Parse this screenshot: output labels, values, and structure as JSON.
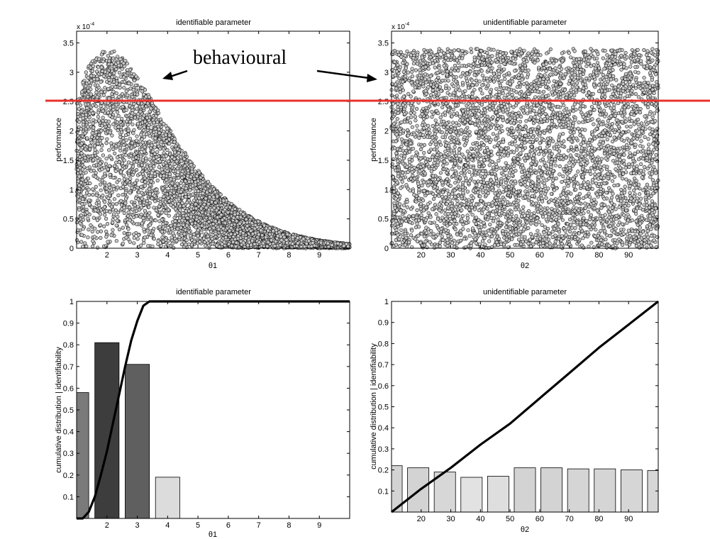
{
  "figure": {
    "annotation": "behavioural",
    "threshold_line_color": "#e8322d"
  },
  "chart_data": [
    {
      "id": "top-left",
      "type": "scatter",
      "title": "identifiable parameter",
      "xlabel": "θ1",
      "ylabel": "performance",
      "exponent_label": "x 10",
      "exponent_power": "-4",
      "xlim": [
        1,
        10
      ],
      "ylim": [
        0,
        3.7
      ],
      "xticks": [
        2,
        3,
        4,
        5,
        6,
        7,
        8,
        9
      ],
      "yticks": [
        0,
        0.5,
        1,
        1.5,
        2,
        2.5,
        3,
        3.5
      ],
      "ytick_labels": [
        "0",
        "0.5",
        "1",
        "1.5",
        "2",
        "2.5",
        "3",
        "3.5"
      ],
      "behavioural_threshold": 2.53,
      "envelope": {
        "peak_x": 2,
        "peak_y": 3.4
      },
      "marker": "open circle",
      "n_points": 5000
    },
    {
      "id": "top-right",
      "type": "scatter",
      "title": "unidentifiable parameter",
      "xlabel": "θ2",
      "ylabel": "performance",
      "exponent_label": "x 10",
      "exponent_power": "-4",
      "xlim": [
        10,
        100
      ],
      "ylim": [
        0,
        3.7
      ],
      "xticks": [
        20,
        30,
        40,
        50,
        60,
        70,
        80,
        90
      ],
      "yticks": [
        0,
        0.5,
        1,
        1.5,
        2,
        2.5,
        3,
        3.5
      ],
      "ytick_labels": [
        "0",
        "0.5",
        "1",
        "1.5",
        "2",
        "2.5",
        "3",
        "3.5"
      ],
      "behavioural_threshold": 2.53,
      "y_range_uniform": [
        0,
        3.4
      ],
      "marker": "open circle",
      "n_points": 5000
    },
    {
      "id": "bottom-left",
      "type": "bar",
      "title": "identifiable parameter",
      "xlabel": "θ1",
      "ylabel": "cumulative distribution | identifiability",
      "xlim": [
        1,
        10
      ],
      "ylim": [
        0,
        1
      ],
      "xticks": [
        2,
        3,
        4,
        5,
        6,
        7,
        8,
        9
      ],
      "yticks": [
        0.1,
        0.2,
        0.3,
        0.4,
        0.5,
        0.6,
        0.7,
        0.8,
        0.9,
        1
      ],
      "ytick_labels": [
        "0.1",
        "0.2",
        "0.3",
        "0.4",
        "0.5",
        "0.6",
        "0.7",
        "0.8",
        "0.9",
        "1"
      ],
      "bars": [
        {
          "x": 1,
          "value": 0.58,
          "color": "#7a7a7a"
        },
        {
          "x": 2,
          "value": 0.81,
          "color": "#3d3d3d"
        },
        {
          "x": 3,
          "value": 0.71,
          "color": "#5f5f5f"
        },
        {
          "x": 4,
          "value": 0.19,
          "color": "#dcdcdc"
        }
      ],
      "cdf_line": {
        "x": [
          1.0,
          1.2,
          1.4,
          1.6,
          1.8,
          2.0,
          2.2,
          2.4,
          2.6,
          2.8,
          3.0,
          3.2,
          3.4,
          3.6,
          4.0,
          10.0
        ],
        "y": [
          0.0,
          0.0,
          0.03,
          0.1,
          0.2,
          0.31,
          0.44,
          0.57,
          0.7,
          0.82,
          0.91,
          0.98,
          1.0,
          1.0,
          1.0,
          1.0
        ]
      }
    },
    {
      "id": "bottom-right",
      "type": "bar",
      "title": "unidentifiable parameter",
      "xlabel": "θ2",
      "ylabel": "cumulative distribution | identifiability",
      "xlim": [
        10,
        100
      ],
      "ylim": [
        0,
        1
      ],
      "xticks": [
        20,
        30,
        40,
        50,
        60,
        70,
        80,
        90
      ],
      "yticks": [
        0.1,
        0.2,
        0.3,
        0.4,
        0.5,
        0.6,
        0.7,
        0.8,
        0.9,
        1
      ],
      "ytick_labels": [
        "0.1",
        "0.2",
        "0.3",
        "0.4",
        "0.5",
        "0.6",
        "0.7",
        "0.8",
        "0.9",
        "1"
      ],
      "bars": [
        {
          "x": 10,
          "value": 0.22,
          "color": "#d3d3d3"
        },
        {
          "x": 19,
          "value": 0.21,
          "color": "#d3d3d3"
        },
        {
          "x": 28,
          "value": 0.19,
          "color": "#d7d7d7"
        },
        {
          "x": 37,
          "value": 0.165,
          "color": "#e2e2e2"
        },
        {
          "x": 46,
          "value": 0.17,
          "color": "#dedede"
        },
        {
          "x": 55,
          "value": 0.21,
          "color": "#d3d3d3"
        },
        {
          "x": 64,
          "value": 0.21,
          "color": "#d3d3d3"
        },
        {
          "x": 73,
          "value": 0.205,
          "color": "#d5d5d5"
        },
        {
          "x": 82,
          "value": 0.205,
          "color": "#d5d5d5"
        },
        {
          "x": 91,
          "value": 0.2,
          "color": "#d6d6d6"
        },
        {
          "x": 100,
          "value": 0.197,
          "color": "#d6d6d6"
        }
      ],
      "cdf_line": {
        "x": [
          10,
          20,
          30,
          40,
          50,
          60,
          70,
          80,
          90,
          100
        ],
        "y": [
          0.0,
          0.11,
          0.21,
          0.32,
          0.42,
          0.54,
          0.66,
          0.78,
          0.89,
          1.0
        ]
      }
    }
  ]
}
